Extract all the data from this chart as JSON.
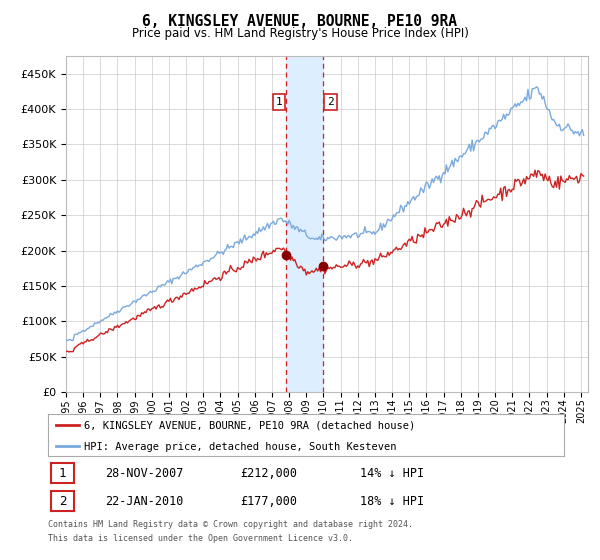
{
  "title": "6, KINGSLEY AVENUE, BOURNE, PE10 9RA",
  "subtitle": "Price paid vs. HM Land Registry's House Price Index (HPI)",
  "sale1_label": "28-NOV-2007",
  "sale1_price": 212000,
  "sale1_hpi_diff": "14% ↓ HPI",
  "sale2_label": "22-JAN-2010",
  "sale2_price": 177000,
  "sale2_hpi_diff": "18% ↓ HPI",
  "hpi_color": "#7aaadd",
  "price_color": "#cc2222",
  "marker_color": "#880000",
  "vspan_color": "#ddeeff",
  "vline_color": "#cc2222",
  "grid_color": "#cccccc",
  "background_color": "#ffffff",
  "legend_entry1": "6, KINGSLEY AVENUE, BOURNE, PE10 9RA (detached house)",
  "legend_entry2": "HPI: Average price, detached house, South Kesteven",
  "footnote1": "Contains HM Land Registry data © Crown copyright and database right 2024.",
  "footnote2": "This data is licensed under the Open Government Licence v3.0.",
  "ylim": [
    0,
    475000
  ],
  "yticks": [
    0,
    50000,
    100000,
    150000,
    200000,
    250000,
    300000,
    350000,
    400000,
    450000
  ]
}
